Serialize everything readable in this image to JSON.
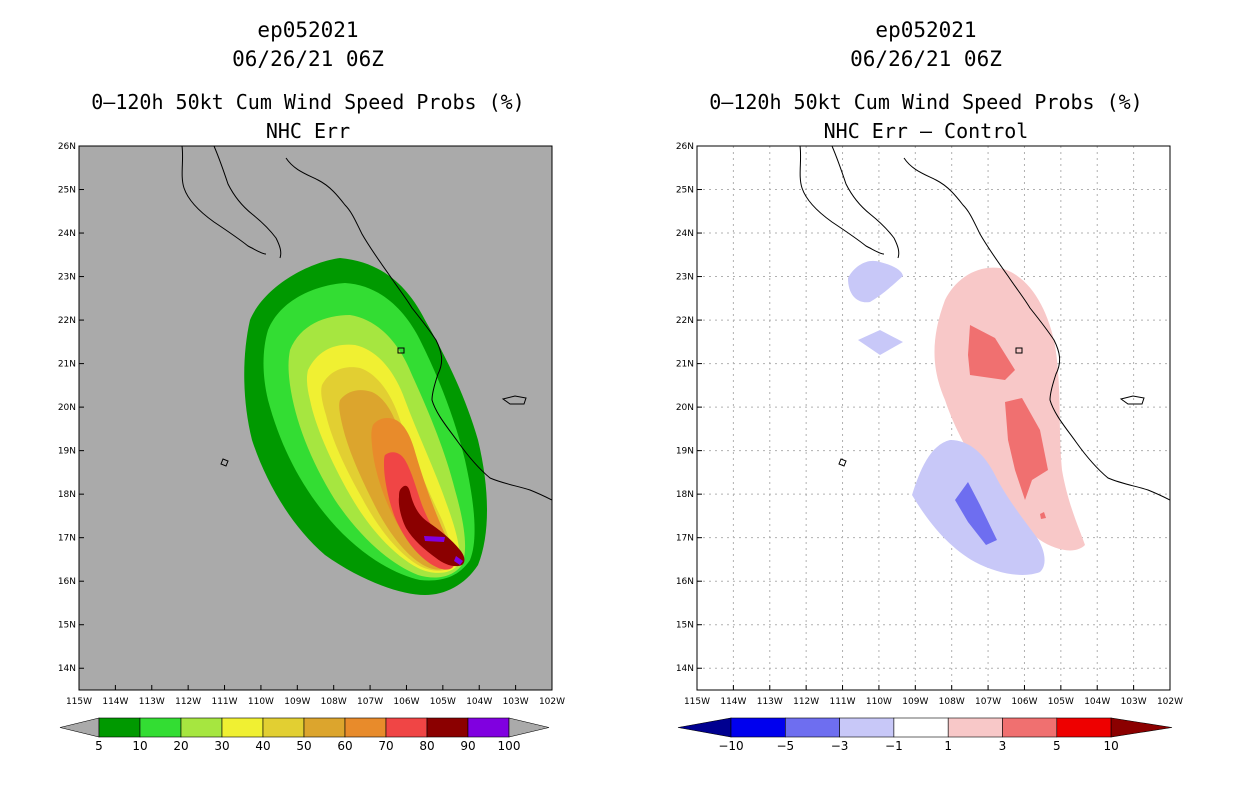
{
  "left_panel": {
    "storm_id": "ep052021",
    "datetime": "06/26/21 06Z",
    "title": "0–120h 50kt Cum Wind Speed Probs (%)",
    "subtitle": "NHC Err",
    "background_color": "#aaaaaa",
    "colorbar": {
      "labels": [
        "5",
        "10",
        "20",
        "30",
        "40",
        "50",
        "60",
        "70",
        "80",
        "90",
        "100"
      ],
      "colors": [
        "#009900",
        "#33dd33",
        "#a6e640",
        "#f0f032",
        "#e2cf32",
        "#dca52d",
        "#e88b2b",
        "#f04545",
        "#8b0000",
        "#8000e0"
      ]
    },
    "contours": [
      {
        "level": "5",
        "color": "#009900"
      },
      {
        "level": "10",
        "color": "#33dd33"
      },
      {
        "level": "20",
        "color": "#a6e640"
      },
      {
        "level": "30",
        "color": "#f0f032"
      },
      {
        "level": "40",
        "color": "#e2cf32"
      },
      {
        "level": "50",
        "color": "#dca52d"
      },
      {
        "level": "60",
        "color": "#e88b2b"
      },
      {
        "level": "70",
        "color": "#f04545"
      },
      {
        "level": "80",
        "color": "#8b0000"
      },
      {
        "level": "90",
        "color": "#8000e0"
      }
    ]
  },
  "right_panel": {
    "storm_id": "ep052021",
    "datetime": "06/26/21 06Z",
    "title": "0–120h 50kt Cum Wind Speed Probs (%)",
    "subtitle": "NHC Err – Control",
    "background_color": "#ffffff",
    "colorbar": {
      "labels": [
        "−10",
        "−5",
        "−3",
        "−1",
        "1",
        "3",
        "5",
        "10"
      ],
      "colors": [
        "#000090",
        "#0000ee",
        "#6e6ef0",
        "#c8c8f8",
        "#ffffff",
        "#f8c8c8",
        "#f07070",
        "#ee0000",
        "#8b0000"
      ]
    }
  },
  "axes": {
    "lon_labels": [
      "115W",
      "114W",
      "113W",
      "112W",
      "111W",
      "110W",
      "109W",
      "108W",
      "107W",
      "106W",
      "105W",
      "104W",
      "103W",
      "102W"
    ],
    "lat_labels": [
      "14N",
      "15N",
      "16N",
      "17N",
      "18N",
      "19N",
      "20N",
      "21N",
      "22N",
      "23N",
      "24N",
      "25N",
      "26N"
    ],
    "lon_range": [
      -115,
      -102
    ],
    "lat_range": [
      13.5,
      26
    ]
  }
}
